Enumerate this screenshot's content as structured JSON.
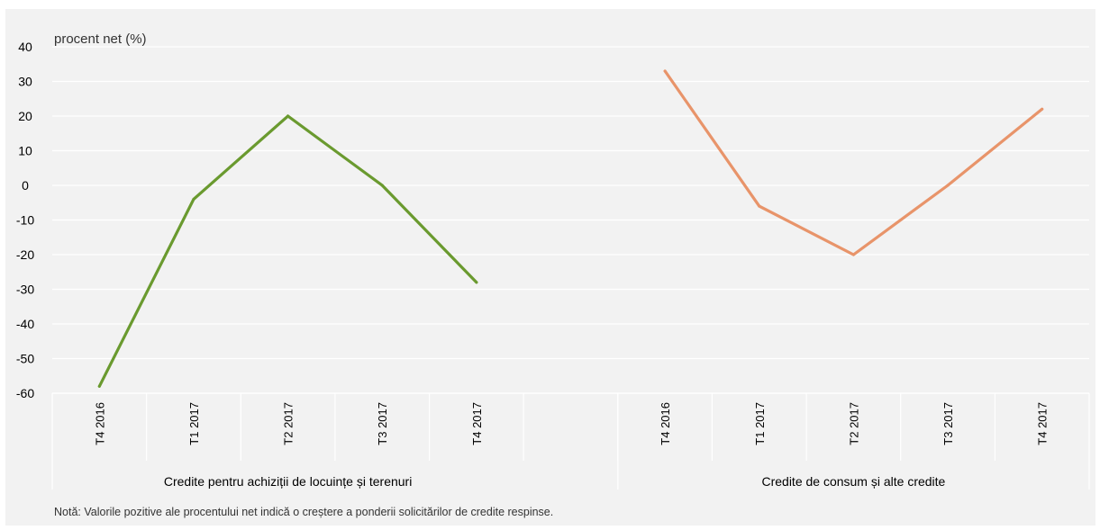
{
  "chart_data": {
    "type": "line",
    "y_unit_label": "procent net (%)",
    "ylim": [
      -60,
      40
    ],
    "y_ticks": [
      40,
      30,
      20,
      10,
      0,
      -10,
      -20,
      -30,
      -40,
      -50,
      -60
    ],
    "grid": true,
    "groups": [
      {
        "label": "Credite pentru achiziții de locuințe și terenuri",
        "categories": [
          "T4 2016",
          "T1 2017",
          "T2 2017",
          "T3 2017",
          "T4 2017"
        ],
        "values": [
          -58,
          -4,
          20,
          0,
          -28
        ],
        "color": "#6a9a2f"
      },
      {
        "label": "Credite de consum și alte credite",
        "categories": [
          "T4 2016",
          "T1 2017",
          "T2 2017",
          "T3 2017",
          "T4 2017"
        ],
        "values": [
          33,
          -6,
          -20,
          0,
          22
        ],
        "color": "#e8946a"
      }
    ],
    "note": "Notă: Valorile pozitive ale procentului net indică o creștere  a ponderii solicitărilor de credite respinse."
  }
}
